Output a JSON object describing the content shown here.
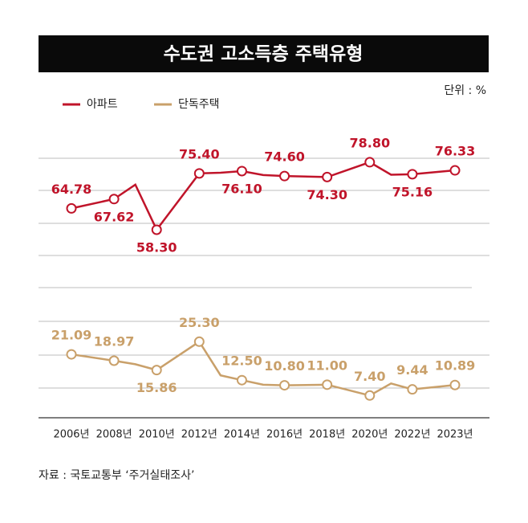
{
  "chart_data": {
    "type": "line",
    "title": "수도권 고소득층 주택유형",
    "unit": "단위 : %",
    "source": "자료 : 국토교통부 ‘주거실태조사’",
    "categories": [
      "2006년",
      "2008년",
      null,
      "2010년",
      "2012년",
      null,
      "2014년",
      null,
      "2016년",
      "2018년",
      "2020년",
      null,
      "2022년",
      "2023년"
    ],
    "ylim": [
      50,
      85
    ],
    "y2lim": [
      0,
      35
    ],
    "series": [
      {
        "name": "아파트",
        "color": "#c0142a",
        "values": [
          64.78,
          67.62,
          72.0,
          58.3,
          75.4,
          75.6,
          76.1,
          74.9,
          74.6,
          74.3,
          78.8,
          75.0,
          75.16,
          76.33
        ],
        "value_labels": [
          "64.78",
          "67.62",
          null,
          "58.30",
          "75.40",
          null,
          "76.10",
          null,
          "74.60",
          "74.30",
          "78.80",
          null,
          "75.16",
          "76.33"
        ]
      },
      {
        "name": "단독주택",
        "color": "#c9a06a",
        "axis": "y2",
        "values": [
          21.09,
          18.97,
          17.8,
          15.86,
          25.3,
          14.1,
          12.5,
          11.0,
          10.8,
          11.0,
          7.4,
          11.4,
          9.44,
          10.89
        ],
        "value_labels": [
          "21.09",
          "18.97",
          null,
          "15.86",
          "25.30",
          null,
          "12.50",
          null,
          "10.80",
          "11.00",
          "7.40",
          null,
          "9.44",
          "10.89"
        ]
      }
    ]
  }
}
